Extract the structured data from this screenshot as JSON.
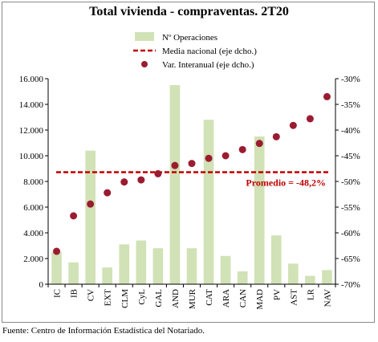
{
  "title": "Total vivienda - compraventas. 2T20",
  "source": "Fuente: Centro de Información Estadística del Notariado.",
  "legend": {
    "bars": "Nº Operaciones",
    "line": "Media nacional (eje dcho.)",
    "dots": "Var. Interanual (eje dcho.)"
  },
  "annotation": "Promedio = -48,2%",
  "colors": {
    "bars": "#d1e2b6",
    "line": "#c00000",
    "dots": "#9b1b30"
  },
  "chart_data": {
    "type": "bar",
    "categories": [
      "IC",
      "IB",
      "CV",
      "EXT",
      "CLM",
      "CyL",
      "GAL",
      "AND",
      "MUR",
      "CAT",
      "ARA",
      "CAN",
      "MAD",
      "PV",
      "AST",
      "LR",
      "NAV"
    ],
    "series": [
      {
        "name": "Nº Operaciones",
        "type": "bar",
        "axis": "left",
        "values": [
          2500,
          1700,
          10400,
          1300,
          3100,
          3400,
          2800,
          15500,
          2800,
          12800,
          2200,
          1000,
          11500,
          3800,
          1600,
          650,
          1100
        ]
      },
      {
        "name": "Var. Interanual (eje dcho.)",
        "type": "scatter",
        "axis": "right",
        "values": [
          -63.6,
          -56.7,
          -54.4,
          -52.2,
          -50.1,
          -49.7,
          -48.5,
          -46.9,
          -46.5,
          -45.5,
          -45.0,
          -43.8,
          -42.6,
          -41.3,
          -39.1,
          -37.8,
          -33.5
        ]
      },
      {
        "name": "Media nacional (eje dcho.)",
        "type": "line",
        "axis": "right",
        "value": -48.2
      }
    ],
    "y_left": {
      "min": 0,
      "max": 16000,
      "step": 2000,
      "tick_labels": [
        "0",
        "2.000",
        "4.000",
        "6.000",
        "8.000",
        "10.000",
        "12.000",
        "14.000",
        "16.000"
      ]
    },
    "y_right": {
      "min": -70,
      "max": -30,
      "step": 5,
      "tick_labels": [
        "-70%",
        "-65%",
        "-60%",
        "-55%",
        "-50%",
        "-45%",
        "-40%",
        "-35%",
        "-30%"
      ]
    },
    "grid": false,
    "legend_position": "top-right"
  }
}
